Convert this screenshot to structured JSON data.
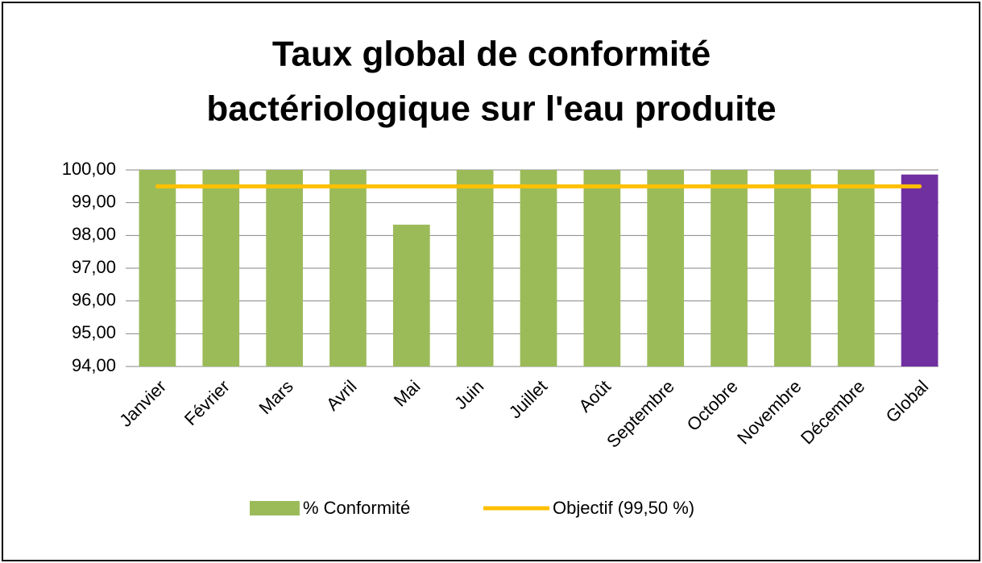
{
  "chart_data": {
    "type": "bar",
    "title": [
      "Taux global de conformité",
      "bactériologique sur l'eau produite"
    ],
    "categories": [
      "Janvier",
      "Février",
      "Mars",
      "Avril",
      "Mai",
      "Juin",
      "Juillet",
      "Août",
      "Septembre",
      "Octobre",
      "Novembre",
      "Décembre",
      "Global"
    ],
    "series": [
      {
        "name": "% Conformité",
        "type": "bar",
        "color": "#9bbb59",
        "colors": [
          "#9bbb59",
          "#9bbb59",
          "#9bbb59",
          "#9bbb59",
          "#9bbb59",
          "#9bbb59",
          "#9bbb59",
          "#9bbb59",
          "#9bbb59",
          "#9bbb59",
          "#9bbb59",
          "#9bbb59",
          "#7030a0"
        ],
        "values": [
          100,
          100,
          100,
          100,
          98.33,
          100,
          100,
          100,
          100,
          100,
          100,
          100,
          99.86
        ]
      },
      {
        "name": "Objectif (99,50 %)",
        "type": "line",
        "color": "#ffc000",
        "values": [
          99.5,
          99.5,
          99.5,
          99.5,
          99.5,
          99.5,
          99.5,
          99.5,
          99.5,
          99.5,
          99.5,
          99.5,
          99.5
        ]
      }
    ],
    "ylim": [
      94,
      100
    ],
    "yticks": [
      {
        "value": 94,
        "label": "94,00"
      },
      {
        "value": 95,
        "label": "95,00"
      },
      {
        "value": 96,
        "label": "96,00"
      },
      {
        "value": 97,
        "label": "97,00"
      },
      {
        "value": 98,
        "label": "98,00"
      },
      {
        "value": 99,
        "label": "99,00"
      },
      {
        "value": 100,
        "label": "100,00"
      }
    ],
    "grid": true,
    "legend": "bottom"
  }
}
